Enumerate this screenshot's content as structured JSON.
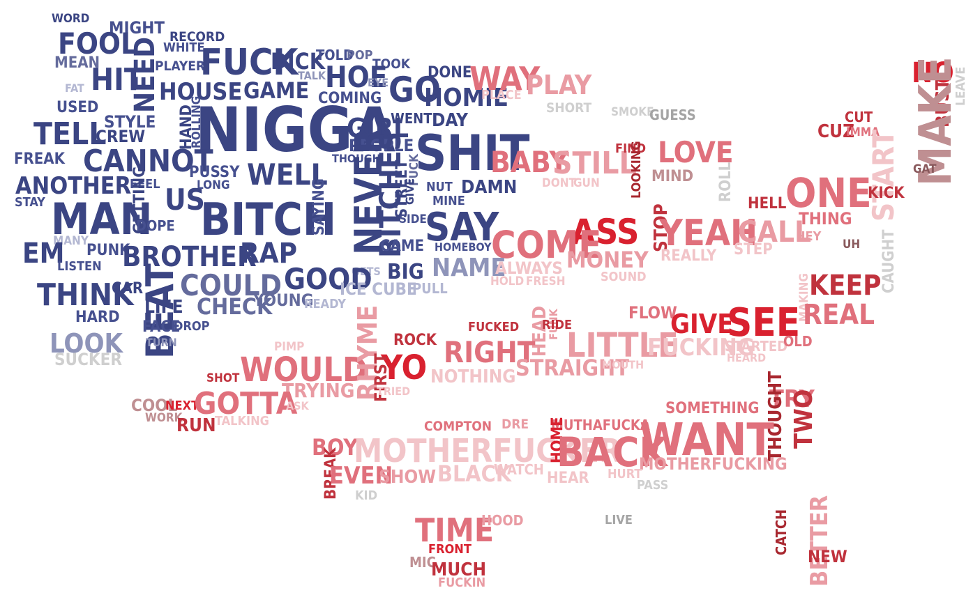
{
  "palette": {
    "navy": "#3b4583",
    "blue": "#46508f",
    "slate": "#646b9c",
    "steel": "#8e94b9",
    "pale_blue": "#b3b7d2",
    "gray": "#a4a4a4",
    "light_gray": "#cfcfcf",
    "red": "#d9212f",
    "crimson": "#c0323d",
    "dark_red": "#a8272f",
    "rose": "#e0707c",
    "pink": "#e99ba3",
    "light_pink": "#f2c4c8",
    "mauve": "#bf8f92",
    "brown": "#8a5a5d"
  },
  "words": [
    {
      "text": "WORD",
      "c": "navy"
    },
    {
      "text": "MIGHT",
      "c": "blue"
    },
    {
      "text": "FOOL",
      "c": "navy"
    },
    {
      "text": "RECORD",
      "c": "navy"
    },
    {
      "text": "WHITE",
      "c": "blue"
    },
    {
      "text": "MEAN",
      "c": "slate"
    },
    {
      "text": "PLAYER",
      "c": "blue"
    },
    {
      "text": "FUCK",
      "c": "navy"
    },
    {
      "text": "DICK",
      "c": "navy"
    },
    {
      "text": "TOLD",
      "c": "blue"
    },
    {
      "text": "POP",
      "c": "slate"
    },
    {
      "text": "TOOK",
      "c": "blue"
    },
    {
      "text": "HIT",
      "c": "navy"
    },
    {
      "text": "NEED",
      "c": "navy"
    },
    {
      "text": "TALK",
      "c": "steel"
    },
    {
      "text": "HOE",
      "c": "navy"
    },
    {
      "text": "EYE",
      "c": "steel"
    },
    {
      "text": "DONE",
      "c": "navy"
    },
    {
      "text": "FAT",
      "c": "pale_blue"
    },
    {
      "text": "HOUSE",
      "c": "navy"
    },
    {
      "text": "GAME",
      "c": "navy"
    },
    {
      "text": "COMING",
      "c": "blue"
    },
    {
      "text": "GO",
      "c": "navy"
    },
    {
      "text": "HOMIE",
      "c": "navy"
    },
    {
      "text": "WAY",
      "c": "rose"
    },
    {
      "text": "PLAY",
      "c": "pink"
    },
    {
      "text": "PLACE",
      "c": "light_pink"
    },
    {
      "text": "NO",
      "c": "red"
    },
    {
      "text": "LEAVE",
      "c": "light_gray"
    },
    {
      "text": "USED",
      "c": "blue"
    },
    {
      "text": "STYLE",
      "c": "blue"
    },
    {
      "text": "HAND",
      "c": "navy"
    },
    {
      "text": "ROLLING",
      "c": "blue"
    },
    {
      "text": "NIGGA",
      "c": "navy"
    },
    {
      "text": "GIRL",
      "c": "navy"
    },
    {
      "text": "WENT",
      "c": "navy"
    },
    {
      "text": "DAY",
      "c": "navy"
    },
    {
      "text": "SHORT",
      "c": "light_gray"
    },
    {
      "text": "SMOKE",
      "c": "light_gray"
    },
    {
      "text": "GUESS",
      "c": "gray"
    },
    {
      "text": "CUT",
      "c": "crimson"
    },
    {
      "text": "BUST",
      "c": "crimson"
    },
    {
      "text": "TELL",
      "c": "navy"
    },
    {
      "text": "CREW",
      "c": "navy"
    },
    {
      "text": "PEOPLE",
      "c": "blue"
    },
    {
      "text": "CUZ",
      "c": "crimson"
    },
    {
      "text": "IMMA",
      "c": "rose"
    },
    {
      "text": "MAKE",
      "c": "mauve"
    },
    {
      "text": "FREAK",
      "c": "blue"
    },
    {
      "text": "CANNOT",
      "c": "navy"
    },
    {
      "text": "THOUGH",
      "c": "blue"
    },
    {
      "text": "FUCK",
      "c": "slate"
    },
    {
      "text": "SHIT",
      "c": "navy"
    },
    {
      "text": "BABY",
      "c": "rose"
    },
    {
      "text": "STILL",
      "c": "pink"
    },
    {
      "text": "FIND",
      "c": "crimson"
    },
    {
      "text": "LOVE",
      "c": "rose"
    },
    {
      "text": "GAT",
      "c": "brown"
    },
    {
      "text": "PUSSY",
      "c": "blue"
    },
    {
      "text": "WELL",
      "c": "navy"
    },
    {
      "text": "LOOKING",
      "c": "dark_red"
    },
    {
      "text": "MIND",
      "c": "mauve"
    },
    {
      "text": "ANOTHER",
      "c": "navy"
    },
    {
      "text": "FEEL",
      "c": "blue"
    },
    {
      "text": "LONG",
      "c": "blue"
    },
    {
      "text": "GETTING",
      "c": "navy"
    },
    {
      "text": "STREET",
      "c": "navy"
    },
    {
      "text": "GIVE",
      "c": "navy"
    },
    {
      "text": "NUT",
      "c": "blue"
    },
    {
      "text": "DAMN",
      "c": "navy"
    },
    {
      "text": "DONT",
      "c": "light_pink"
    },
    {
      "text": "GUN",
      "c": "light_pink"
    },
    {
      "text": "ROLL",
      "c": "light_gray"
    },
    {
      "text": "START",
      "c": "light_pink"
    },
    {
      "text": "STAY",
      "c": "blue"
    },
    {
      "text": "US",
      "c": "navy"
    },
    {
      "text": "ONE",
      "c": "rose"
    },
    {
      "text": "KICK",
      "c": "crimson"
    },
    {
      "text": "MAN",
      "c": "navy"
    },
    {
      "text": "BITCH",
      "c": "navy"
    },
    {
      "text": "SAYING",
      "c": "blue"
    },
    {
      "text": "NEVER",
      "c": "navy"
    },
    {
      "text": "BITCHES",
      "c": "navy"
    },
    {
      "text": "MINE",
      "c": "blue"
    },
    {
      "text": "HELL",
      "c": "crimson"
    },
    {
      "text": "DOPE",
      "c": "blue"
    },
    {
      "text": "SIDE",
      "c": "blue"
    },
    {
      "text": "SAY",
      "c": "navy"
    },
    {
      "text": "THING",
      "c": "rose"
    },
    {
      "text": "ASS",
      "c": "red"
    },
    {
      "text": "STOP",
      "c": "crimson"
    },
    {
      "text": "YEAH",
      "c": "rose"
    },
    {
      "text": "CALL",
      "c": "pink"
    },
    {
      "text": "MANY",
      "c": "pale_blue"
    },
    {
      "text": "PUNK",
      "c": "blue"
    },
    {
      "text": "HEY",
      "c": "pink"
    },
    {
      "text": "EM",
      "c": "navy"
    },
    {
      "text": "BROTHER",
      "c": "navy"
    },
    {
      "text": "RAP",
      "c": "navy"
    },
    {
      "text": "CAME",
      "c": "blue"
    },
    {
      "text": "HOMEBOY",
      "c": "blue"
    },
    {
      "text": "COME",
      "c": "rose"
    },
    {
      "text": "UH",
      "c": "brown"
    },
    {
      "text": "LISTEN",
      "c": "blue"
    },
    {
      "text": "MONEY",
      "c": "pink"
    },
    {
      "text": "REALLY",
      "c": "light_pink"
    },
    {
      "text": "STEP",
      "c": "light_pink"
    },
    {
      "text": "CAUGHT",
      "c": "light_gray"
    },
    {
      "text": "NAME",
      "c": "steel"
    },
    {
      "text": "ALWAYS",
      "c": "light_pink"
    },
    {
      "text": "GETS",
      "c": "pale_blue"
    },
    {
      "text": "BIG",
      "c": "navy"
    },
    {
      "text": "GOOD",
      "c": "navy"
    },
    {
      "text": "THINK",
      "c": "navy"
    },
    {
      "text": "CAR",
      "c": "navy"
    },
    {
      "text": "COULD",
      "c": "slate"
    },
    {
      "text": "ICE CUBE",
      "c": "pale_blue"
    },
    {
      "text": "PULL",
      "c": "pale_blue"
    },
    {
      "text": "HOLD",
      "c": "light_pink"
    },
    {
      "text": "FRESH",
      "c": "light_pink"
    },
    {
      "text": "SOUND",
      "c": "light_pink"
    },
    {
      "text": "MAKING",
      "c": "light_pink"
    },
    {
      "text": "KEEP",
      "c": "crimson"
    },
    {
      "text": "LIFE",
      "c": "navy"
    },
    {
      "text": "YOUNG",
      "c": "slate"
    },
    {
      "text": "CHECK",
      "c": "slate"
    },
    {
      "text": "READY",
      "c": "pale_blue"
    },
    {
      "text": "REAL",
      "c": "rose"
    },
    {
      "text": "BEAT",
      "c": "navy"
    },
    {
      "text": "HARD",
      "c": "blue"
    },
    {
      "text": "FACE",
      "c": "blue"
    },
    {
      "text": "DROP",
      "c": "blue"
    },
    {
      "text": "FLOW",
      "c": "rose"
    },
    {
      "text": "GIVE",
      "c": "red"
    },
    {
      "text": "SEE",
      "c": "red"
    },
    {
      "text": "FUCKED",
      "c": "crimson"
    },
    {
      "text": "HEAD",
      "c": "pink"
    },
    {
      "text": "FUNK",
      "c": "pink"
    },
    {
      "text": "RIDE",
      "c": "crimson"
    },
    {
      "text": "LOOK",
      "c": "steel"
    },
    {
      "text": "TURN",
      "c": "steel"
    },
    {
      "text": "PIMP",
      "c": "light_pink"
    },
    {
      "text": "ROCK",
      "c": "crimson"
    },
    {
      "text": "LITTLE",
      "c": "pink"
    },
    {
      "text": "FUCKING",
      "c": "light_pink"
    },
    {
      "text": "STARTED",
      "c": "light_pink"
    },
    {
      "text": "OLD",
      "c": "rose"
    },
    {
      "text": "SUCKER",
      "c": "light_gray"
    },
    {
      "text": "RIGHT",
      "c": "rose"
    },
    {
      "text": "HEARD",
      "c": "light_pink"
    },
    {
      "text": "WOULD",
      "c": "rose"
    },
    {
      "text": "RHYME",
      "c": "pink"
    },
    {
      "text": "YO",
      "c": "red"
    },
    {
      "text": "STRAIGHT",
      "c": "pink"
    },
    {
      "text": "MOUTH",
      "c": "light_pink"
    },
    {
      "text": "SHOT",
      "c": "crimson"
    },
    {
      "text": "FIRST",
      "c": "crimson"
    },
    {
      "text": "NOTHING",
      "c": "light_pink"
    },
    {
      "text": "TRYING",
      "c": "pink"
    },
    {
      "text": "TRIED",
      "c": "light_pink"
    },
    {
      "text": "COOL",
      "c": "mauve"
    },
    {
      "text": "NEXT",
      "c": "red"
    },
    {
      "text": "GOTTA",
      "c": "rose"
    },
    {
      "text": "ASK",
      "c": "light_pink"
    },
    {
      "text": "SOMETHING",
      "c": "rose"
    },
    {
      "text": "TRY",
      "c": "rose"
    },
    {
      "text": "WORK",
      "c": "mauve"
    },
    {
      "text": "RUN",
      "c": "crimson"
    },
    {
      "text": "TALKING",
      "c": "light_pink"
    },
    {
      "text": "THOUGHT",
      "c": "dark_red"
    },
    {
      "text": "COMPTON",
      "c": "rose"
    },
    {
      "text": "DRE",
      "c": "pink"
    },
    {
      "text": "MUTHAFUCKA",
      "c": "rose"
    },
    {
      "text": "WANT",
      "c": "rose"
    },
    {
      "text": "TWO",
      "c": "crimson"
    },
    {
      "text": "BOY",
      "c": "rose"
    },
    {
      "text": "MOTHERFUCKER",
      "c": "light_pink"
    },
    {
      "text": "HOME",
      "c": "red"
    },
    {
      "text": "BACK",
      "c": "rose"
    },
    {
      "text": "MOTHERFUCKING",
      "c": "pink"
    },
    {
      "text": "BREAK",
      "c": "crimson"
    },
    {
      "text": "EVEN",
      "c": "rose"
    },
    {
      "text": "SHOW",
      "c": "pink"
    },
    {
      "text": "BLACK",
      "c": "light_pink"
    },
    {
      "text": "WATCH",
      "c": "light_pink"
    },
    {
      "text": "HEAR",
      "c": "light_pink"
    },
    {
      "text": "HURT",
      "c": "light_pink"
    },
    {
      "text": "PASS",
      "c": "light_gray"
    },
    {
      "text": "KID",
      "c": "light_gray"
    },
    {
      "text": "TIME",
      "c": "rose"
    },
    {
      "text": "HOOD",
      "c": "pink"
    },
    {
      "text": "LIVE",
      "c": "gray"
    },
    {
      "text": "CATCH",
      "c": "dark_red"
    },
    {
      "text": "BETTER",
      "c": "pink"
    },
    {
      "text": "FRONT",
      "c": "red"
    },
    {
      "text": "NEW",
      "c": "crimson"
    },
    {
      "text": "MIC",
      "c": "mauve"
    },
    {
      "text": "MUCH",
      "c": "crimson"
    },
    {
      "text": "FUCKIN",
      "c": "pink"
    }
  ]
}
